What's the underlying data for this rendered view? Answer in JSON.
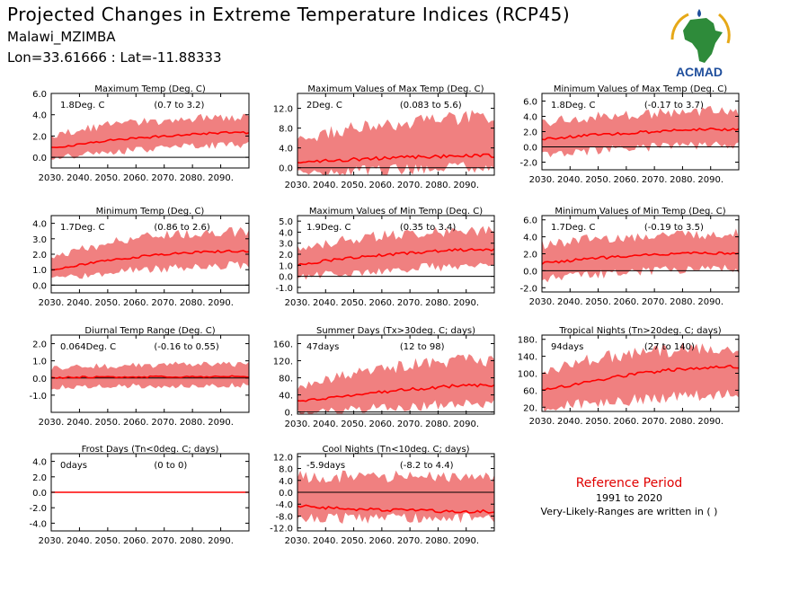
{
  "header": {
    "title": "Projected Changes in Extreme Temperature Indices (RCP45)",
    "station": "Malawi_MZIMBA",
    "coords": "Lon=33.61666 : Lat=-11.88333"
  },
  "logo": {
    "text": "ACMAD",
    "icon": "africa-map-logo"
  },
  "reference": {
    "title": "Reference Period",
    "years": "1991 to 2020",
    "note": "Very-Likely-Ranges are written in ( )"
  },
  "colors": {
    "band": "#f08080",
    "line": "#ff0000",
    "zero": "#000000",
    "logo_green": "#2e8b3a",
    "logo_blue": "#1f4e9c",
    "logo_gold": "#e6a817"
  },
  "chart_data": [
    {
      "type": "area",
      "title": "Maximum Temp (Deg. C)",
      "stat": "1.8Deg. C",
      "range": "(0.7 to 3.2)",
      "x": [
        2030,
        2040,
        2050,
        2060,
        2070,
        2080,
        2090
      ],
      "x_ticks": [
        "2030.",
        "2040.",
        "2050.",
        "2060.",
        "2070.",
        "2080.",
        "2090."
      ],
      "ylim": [
        -1.0,
        6.0
      ],
      "y_ticks": [
        0.0,
        2.0,
        4.0,
        6.0
      ],
      "y_tick_labels": [
        "0.0",
        "2.0",
        "4.0",
        "6.0"
      ],
      "median": [
        0.9,
        1.2,
        1.6,
        1.8,
        2.0,
        2.2,
        2.3
      ],
      "lower": [
        0.1,
        0.3,
        0.6,
        0.8,
        1.0,
        1.2,
        1.3
      ],
      "upper": [
        1.9,
        2.4,
        2.9,
        3.1,
        3.3,
        3.5,
        3.6
      ]
    },
    {
      "type": "area",
      "title": "Maximum Values of Max Temp (Deg. C)",
      "stat": "2Deg. C",
      "range": "(0.083 to 5.6)",
      "x": [
        2030,
        2040,
        2050,
        2060,
        2070,
        2080,
        2090
      ],
      "x_ticks": [
        "2030.",
        "2040.",
        "2050.",
        "2060.",
        "2070.",
        "2080.",
        "2090."
      ],
      "ylim": [
        -1.5,
        15.0
      ],
      "y_ticks": [
        0.0,
        4.0,
        8.0,
        12.0
      ],
      "y_tick_labels": [
        "0.0",
        "4.0",
        "8.0",
        "12.0"
      ],
      "median": [
        1.0,
        1.4,
        1.7,
        1.9,
        2.1,
        2.3,
        2.4
      ],
      "lower": [
        -1.0,
        -0.6,
        -0.3,
        -0.1,
        0.1,
        0.3,
        0.4
      ],
      "upper": [
        5.0,
        6.5,
        7.5,
        8.0,
        8.5,
        9.0,
        9.5
      ]
    },
    {
      "type": "area",
      "title": "Minimum Values of Max Temp (Deg. C)",
      "stat": "1.8Deg. C",
      "range": "(-0.17 to 3.7)",
      "x": [
        2030,
        2040,
        2050,
        2060,
        2070,
        2080,
        2090
      ],
      "x_ticks": [
        "2030.",
        "2040.",
        "2050.",
        "2060.",
        "2070.",
        "2080.",
        "2090."
      ],
      "ylim": [
        -3.0,
        7.0
      ],
      "y_ticks": [
        -2.0,
        0.0,
        2.0,
        4.0,
        6.0
      ],
      "y_tick_labels": [
        "-2.0",
        "0.0",
        "2.0",
        "4.0",
        "6.0"
      ],
      "median": [
        1.0,
        1.3,
        1.6,
        1.8,
        2.0,
        2.2,
        2.3
      ],
      "lower": [
        -0.8,
        -0.5,
        -0.2,
        0.0,
        0.2,
        0.4,
        0.5
      ],
      "upper": [
        3.0,
        3.4,
        3.7,
        3.9,
        4.1,
        4.3,
        4.4
      ]
    },
    {
      "type": "area",
      "title": "Minimum Temp (Deg. C)",
      "stat": "1.7Deg. C",
      "range": "(0.86 to 2.6)",
      "x": [
        2030,
        2040,
        2050,
        2060,
        2070,
        2080,
        2090
      ],
      "x_ticks": [
        "2030.",
        "2040.",
        "2050.",
        "2060.",
        "2070.",
        "2080.",
        "2090."
      ],
      "ylim": [
        -0.5,
        4.5
      ],
      "y_ticks": [
        0.0,
        1.0,
        2.0,
        3.0,
        4.0
      ],
      "y_tick_labels": [
        "0.0",
        "1.0",
        "2.0",
        "3.0",
        "4.0"
      ],
      "median": [
        1.0,
        1.3,
        1.6,
        1.8,
        2.0,
        2.1,
        2.2
      ],
      "lower": [
        0.5,
        0.7,
        0.9,
        1.1,
        1.2,
        1.3,
        1.4
      ],
      "upper": [
        1.6,
        2.2,
        2.6,
        2.9,
        3.1,
        3.2,
        3.3
      ]
    },
    {
      "type": "area",
      "title": "Maximum Values of Min Temp (Deg. C)",
      "stat": "1.9Deg. C",
      "range": "(0.35 to 3.4)",
      "x": [
        2030,
        2040,
        2050,
        2060,
        2070,
        2080,
        2090
      ],
      "x_ticks": [
        "2030.",
        "2040.",
        "2050.",
        "2060.",
        "2070.",
        "2080.",
        "2090."
      ],
      "ylim": [
        -1.5,
        5.5
      ],
      "y_ticks": [
        -1.0,
        0.0,
        1.0,
        2.0,
        3.0,
        4.0,
        5.0
      ],
      "y_tick_labels": [
        "-1.0",
        "0.0",
        "1.0",
        "2.0",
        "3.0",
        "4.0",
        "5.0"
      ],
      "median": [
        1.0,
        1.4,
        1.7,
        1.9,
        2.1,
        2.3,
        2.4
      ],
      "lower": [
        0.0,
        0.3,
        0.5,
        0.7,
        0.9,
        1.0,
        1.1
      ],
      "upper": [
        2.3,
        2.8,
        3.2,
        3.5,
        3.7,
        3.8,
        3.9
      ]
    },
    {
      "type": "area",
      "title": "Minimum Values of Min Temp (Deg. C)",
      "stat": "1.7Deg. C",
      "range": "(-0.19 to 3.5)",
      "x": [
        2030,
        2040,
        2050,
        2060,
        2070,
        2080,
        2090
      ],
      "x_ticks": [
        "2030.",
        "2040.",
        "2050.",
        "2060.",
        "2070.",
        "2080.",
        "2090."
      ],
      "ylim": [
        -2.5,
        6.5
      ],
      "y_ticks": [
        -2.0,
        0.0,
        2.0,
        4.0,
        6.0
      ],
      "y_tick_labels": [
        "-2.0",
        "0.0",
        "2.0",
        "4.0",
        "6.0"
      ],
      "median": [
        0.9,
        1.2,
        1.5,
        1.7,
        1.9,
        2.0,
        2.1
      ],
      "lower": [
        -0.7,
        -0.4,
        -0.2,
        0.0,
        0.2,
        0.3,
        0.4
      ],
      "upper": [
        2.8,
        3.2,
        3.5,
        3.7,
        3.9,
        4.0,
        4.1
      ]
    },
    {
      "type": "area",
      "title": "Diurnal Temp Range (Deg. C)",
      "stat": "0.064Deg. C",
      "range": "(-0.16 to 0.55)",
      "x": [
        2030,
        2040,
        2050,
        2060,
        2070,
        2080,
        2090
      ],
      "x_ticks": [
        "2030.",
        "2040.",
        "2050.",
        "2060.",
        "2070.",
        "2080.",
        "2090."
      ],
      "ylim": [
        -2.0,
        2.5
      ],
      "y_ticks": [
        -1.0,
        0.0,
        1.0,
        2.0
      ],
      "y_tick_labels": [
        "-1.0",
        "0.0",
        "1.0",
        "2.0"
      ],
      "median": [
        0.0,
        0.05,
        0.05,
        0.06,
        0.07,
        0.08,
        0.09
      ],
      "lower": [
        -0.5,
        -0.45,
        -0.45,
        -0.4,
        -0.4,
        -0.35,
        -0.35
      ],
      "upper": [
        0.5,
        0.6,
        0.6,
        0.65,
        0.7,
        0.7,
        0.75
      ]
    },
    {
      "type": "area",
      "title": "Summer Days (Tx>30deg. C; days)",
      "stat": "47days",
      "range": "(12 to 98)",
      "x": [
        2030,
        2040,
        2050,
        2060,
        2070,
        2080,
        2090
      ],
      "x_ticks": [
        "2030.",
        "2040.",
        "2050.",
        "2060.",
        "2070.",
        "2080.",
        "2090."
      ],
      "ylim": [
        -5,
        180
      ],
      "y_ticks": [
        0,
        40,
        80,
        120,
        160
      ],
      "y_tick_labels": [
        "0.",
        "40.",
        "80.",
        "120.",
        "160."
      ],
      "median": [
        25,
        32,
        40,
        47,
        53,
        58,
        62
      ],
      "lower": [
        2,
        6,
        10,
        14,
        18,
        22,
        25
      ],
      "upper": [
        55,
        70,
        85,
        95,
        105,
        110,
        115
      ]
    },
    {
      "type": "area",
      "title": "Tropical Nights (Tn>20deg. C; days)",
      "stat": "94days",
      "range": "(27 to 140)",
      "x": [
        2030,
        2040,
        2050,
        2060,
        2070,
        2080,
        2090
      ],
      "x_ticks": [
        "2030.",
        "2040.",
        "2050.",
        "2060.",
        "2070.",
        "2080.",
        "2090."
      ],
      "ylim": [
        10,
        190
      ],
      "y_ticks": [
        20,
        60,
        100,
        140,
        180
      ],
      "y_tick_labels": [
        "20.",
        "60.",
        "100.",
        "140.",
        "180."
      ],
      "median": [
        60,
        72,
        84,
        95,
        103,
        110,
        115
      ],
      "lower": [
        25,
        30,
        36,
        42,
        47,
        52,
        55
      ],
      "upper": [
        100,
        115,
        128,
        138,
        145,
        150,
        155
      ]
    },
    {
      "type": "area",
      "title": "Frost Days (Tn<0deg. C; days)",
      "stat": "0days",
      "range": "(0 to 0)",
      "x": [
        2030,
        2040,
        2050,
        2060,
        2070,
        2080,
        2090
      ],
      "x_ticks": [
        "2030.",
        "2040.",
        "2050.",
        "2060.",
        "2070.",
        "2080.",
        "2090."
      ],
      "ylim": [
        -5.0,
        5.0
      ],
      "y_ticks": [
        -4.0,
        -2.0,
        0.0,
        2.0,
        4.0
      ],
      "y_tick_labels": [
        "-4.0",
        "-2.0",
        "0.0",
        "2.0",
        "4.0"
      ],
      "median": [
        0,
        0,
        0,
        0,
        0,
        0,
        0
      ],
      "lower": [
        0,
        0,
        0,
        0,
        0,
        0,
        0
      ],
      "upper": [
        0,
        0,
        0,
        0,
        0,
        0,
        0
      ]
    },
    {
      "type": "area",
      "title": "Cool Nights (Tn<10deg. C; days)",
      "stat": "-5.9days",
      "range": "(-8.2 to 4.4)",
      "x": [
        2030,
        2040,
        2050,
        2060,
        2070,
        2080,
        2090
      ],
      "x_ticks": [
        "2030.",
        "2040.",
        "2050.",
        "2060.",
        "2070.",
        "2080.",
        "2090."
      ],
      "ylim": [
        -13.0,
        13.0
      ],
      "y_ticks": [
        -12.0,
        -8.0,
        -4.0,
        0.0,
        4.0,
        8.0,
        12.0
      ],
      "y_tick_labels": [
        "-12.0",
        "-8.0",
        "-4.0",
        "0.0",
        "4.0",
        "8.0",
        "12.0"
      ],
      "median": [
        -4.5,
        -5.2,
        -5.6,
        -5.9,
        -6.1,
        -6.3,
        -6.5
      ],
      "lower": [
        -8.0,
        -8.0,
        -8.0,
        -8.0,
        -8.0,
        -8.0,
        -8.0
      ],
      "upper": [
        4.4,
        4.4,
        4.4,
        4.4,
        4.4,
        4.4,
        4.4
      ]
    }
  ]
}
